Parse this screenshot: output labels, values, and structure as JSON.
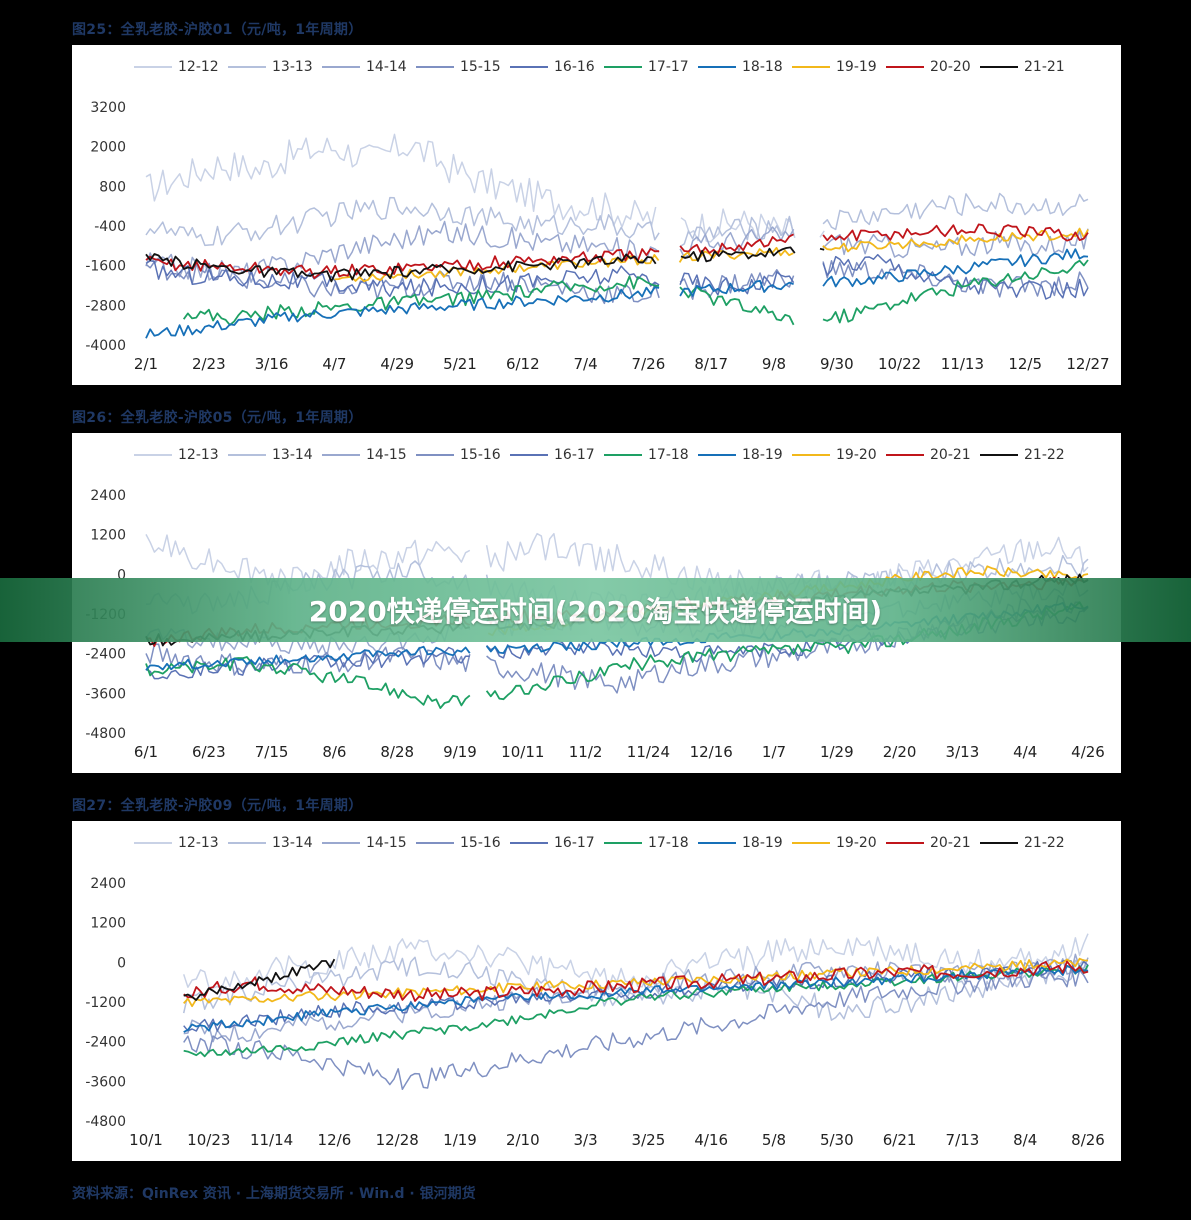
{
  "colors": {
    "series": [
      "#c9d2e6",
      "#b4c0dc",
      "#9aa8cf",
      "#7f90c2",
      "#5a72b5",
      "#1ea064",
      "#1770b8",
      "#f2b81b",
      "#c0151b",
      "#111111"
    ],
    "banner": "#5fb38a",
    "title": "#1f3864"
  },
  "banner": {
    "text": "2020快递停运时间(2020淘宝快递停运时间)"
  },
  "source": {
    "text": "资料来源：QinRex 资讯 · 上海期货交易所 · Win.d · 银河期货"
  },
  "chart_data": [
    {
      "type": "line",
      "title": "图25：全乳老胶-沪胶01（元/吨，1年周期）",
      "legend": [
        "12-12",
        "13-13",
        "14-14",
        "15-15",
        "16-16",
        "17-17",
        "18-18",
        "19-19",
        "20-20",
        "21-21"
      ],
      "y_ticks": [
        "3200",
        "2000",
        "800",
        "-400",
        "-1600",
        "-2800",
        "-4000"
      ],
      "ylim": [
        -4000,
        3200
      ],
      "x_ticks": [
        "2/1",
        "2/23",
        "3/16",
        "4/7",
        "4/29",
        "5/21",
        "6/12",
        "7/4",
        "7/26",
        "8/17",
        "9/8",
        "9/30",
        "10/22",
        "11/13",
        "12/5",
        "12/27"
      ],
      "gaps": [
        0.545,
        0.565,
        0.69,
        0.715
      ],
      "series": [
        {
          "name": "12-12",
          "values": [
            700,
            1100,
            1500,
            1300,
            1800,
            2000,
            1600,
            2100,
            1400,
            900,
            600,
            300,
            200,
            -100,
            -300,
            -400,
            -300,
            -600,
            -700
          ],
          "start": 0.0,
          "end": 0.72,
          "noise": 500
        },
        {
          "name": "13-13",
          "values": [
            -400,
            -800,
            -600,
            -300,
            0,
            200,
            100,
            -200,
            -400,
            -300,
            -600,
            -700,
            -500,
            -400,
            -200,
            0,
            200,
            300,
            200,
            300
          ],
          "start": 0.0,
          "end": 1.0,
          "noise": 350
        },
        {
          "name": "14-14",
          "values": [
            -1500,
            -1700,
            -1800,
            -1500,
            -1100,
            -800,
            -600,
            -700,
            -900,
            -1000,
            -1200,
            -1000,
            -800,
            -700,
            -900,
            -1000,
            -1100,
            -900,
            -1000,
            -800
          ],
          "start": 0.0,
          "end": 1.0,
          "noise": 350
        },
        {
          "name": "15-15",
          "values": [
            -1600,
            -1800,
            -2000,
            -2200,
            -2400,
            -2300,
            -2100,
            -2000,
            -2200,
            -2400,
            -2500,
            -2300,
            -2100,
            -1900,
            -1700,
            -1800,
            -2000,
            -2300,
            -2200,
            -2100
          ],
          "start": 0.0,
          "end": 1.0,
          "noise": 350
        },
        {
          "name": "16-16",
          "values": [
            -1700,
            -1900,
            -2000,
            -2100,
            -2200,
            -2300,
            -2200,
            -2100,
            -2000,
            -1900,
            -2000,
            -2200,
            -2100,
            -1600,
            -1400,
            -2000,
            -2200,
            -2400,
            -2300
          ],
          "start": 0.0,
          "end": 1.0,
          "noise": 300
        },
        {
          "name": "17-17",
          "values": [
            -3000,
            -3200,
            -3000,
            -2900,
            -2800,
            -2700,
            -2600,
            -2500,
            -2300,
            -2200,
            -2100,
            -2300,
            -2700,
            -3100,
            -3300,
            -3000,
            -2600,
            -2300,
            -2000,
            -1800,
            -1600
          ],
          "start": 0.04,
          "end": 1.0,
          "noise": 220
        },
        {
          "name": "18-18",
          "values": [
            -3700,
            -3500,
            -3300,
            -3100,
            -3000,
            -2900,
            -2800,
            -2700,
            -2600,
            -2500,
            -2400,
            -2300,
            -2200,
            -2100,
            -2000,
            -1800,
            -1600,
            -1400,
            -1200
          ],
          "start": 0.0,
          "end": 1.0,
          "noise": 180
        },
        {
          "name": "19-19",
          "values": [
            -2000,
            -1900,
            -1800,
            -1700,
            -1600,
            -1500,
            -1400,
            -1300,
            -1200,
            -1100,
            -1000,
            -900,
            -800,
            -700,
            -600
          ],
          "start": 0.2,
          "end": 1.0,
          "noise": 150
        },
        {
          "name": "20-20",
          "values": [
            -1500,
            -1600,
            -1700,
            -1800,
            -1700,
            -1600,
            -1500,
            -1400,
            -1300,
            -1200,
            -1000,
            -800,
            -700,
            -600,
            -500,
            -600,
            -700
          ],
          "start": 0.0,
          "end": 1.0,
          "noise": 200
        },
        {
          "name": "21-21",
          "values": [
            -1400,
            -1600,
            -1800,
            -1900,
            -1800,
            -1700,
            -1600,
            -1500,
            -1400,
            -1300,
            -1200,
            -1100
          ],
          "start": 0.0,
          "end": 0.72,
          "noise": 180
        }
      ]
    },
    {
      "type": "line",
      "title": "图26：全乳老胶-沪胶05（元/吨，1年周期）",
      "legend": [
        "12-13",
        "13-14",
        "14-15",
        "15-16",
        "16-17",
        "17-18",
        "18-19",
        "19-20",
        "20-21",
        "21-22"
      ],
      "y_ticks": [
        "2400",
        "1200",
        "0",
        "-1200",
        "-2400",
        "-3600",
        "-4800"
      ],
      "ylim": [
        -4800,
        2400
      ],
      "x_ticks": [
        "6/1",
        "6/23",
        "7/15",
        "8/6",
        "8/28",
        "9/19",
        "10/11",
        "11/2",
        "11/24",
        "12/16",
        "1/7",
        "1/29",
        "2/20",
        "3/13",
        "4/4",
        "4/26"
      ],
      "gaps": [
        0.345,
        0.36
      ],
      "series": [
        {
          "name": "12-13",
          "values": [
            900,
            600,
            200,
            -200,
            300,
            500,
            700,
            400,
            900,
            600,
            300,
            -100,
            -300,
            -200,
            -400,
            -100,
            100,
            400,
            800,
            500
          ],
          "start": 0.0,
          "end": 1.0,
          "noise": 450
        },
        {
          "name": "13-14",
          "values": [
            -600,
            -900,
            -700,
            -300,
            -100,
            200,
            -200,
            -500,
            -700,
            -900,
            -800,
            -600,
            -400,
            -300,
            -200,
            0,
            100,
            300,
            200
          ],
          "start": 0.0,
          "end": 1.0,
          "noise": 350
        },
        {
          "name": "14-15",
          "values": [
            -1800,
            -2000,
            -2100,
            -2200,
            -2100,
            -1800,
            -1600,
            -1400,
            -1500,
            -1700,
            -1600,
            -1400,
            -1200,
            -1000,
            -800,
            -600,
            -500
          ],
          "start": 0.0,
          "end": 1.0,
          "noise": 300
        },
        {
          "name": "15-16",
          "values": [
            -2400,
            -2600,
            -2800,
            -2700,
            -2600,
            -2500,
            -2700,
            -2900,
            -3100,
            -3300,
            -2900,
            -2700,
            -2500,
            -2300,
            -2000,
            -1600,
            -1300,
            -1000,
            -800
          ],
          "start": 0.0,
          "end": 1.0,
          "noise": 350
        },
        {
          "name": "16-17",
          "values": [
            -3000,
            -2900,
            -2800,
            -2700,
            -2600,
            -2500,
            -2400,
            -2300,
            -2200,
            -2300,
            -2400,
            -2300,
            -2200,
            -2000,
            -1800,
            -1600,
            -1400,
            -1200
          ],
          "start": 0.0,
          "end": 1.0,
          "noise": 250
        },
        {
          "name": "17-18",
          "values": [
            -2900,
            -2800,
            -2700,
            -2900,
            -3200,
            -3500,
            -3900,
            -3700,
            -3400,
            -3000,
            -2700,
            -2500,
            -2400,
            -2300,
            -2200,
            -2000,
            -1800,
            -1500,
            -1200,
            -1000
          ],
          "start": 0.0,
          "end": 1.0,
          "noise": 220
        },
        {
          "name": "18-19",
          "values": [
            -2800,
            -2700,
            -2600,
            -2500,
            -2400,
            -2300,
            -2300,
            -2200,
            -2100,
            -2000,
            -1900,
            -1800,
            -1700,
            -1500,
            -1300,
            -1100,
            -900
          ],
          "start": 0.0,
          "end": 1.0,
          "noise": 150
        },
        {
          "name": "19-20",
          "values": [
            -1800,
            -1600,
            -1400,
            -1200,
            -1000,
            -800,
            -600,
            -400,
            -200,
            0,
            100,
            0,
            -100
          ],
          "start": 0.35,
          "end": 1.0,
          "noise": 150
        },
        {
          "name": "20-21",
          "values": [
            -2000,
            -1800,
            -1600,
            -1500,
            -1400,
            -1300,
            -1200,
            -1000,
            -800,
            -700,
            -500,
            -400,
            -300,
            -200
          ],
          "start": 0.0,
          "end": 1.0,
          "noise": 200
        },
        {
          "name": "21-22",
          "values": [
            -2000,
            -1900,
            -1800,
            -1700,
            -1600,
            -1500,
            -1300,
            -1100,
            -900,
            -700,
            -500,
            -300,
            -100
          ],
          "start": 0.0,
          "end": 1.0,
          "noise": 180
        }
      ]
    },
    {
      "type": "line",
      "title": "图27：全乳老胶-沪胶09（元/吨，1年周期）",
      "legend": [
        "12-13",
        "13-14",
        "14-15",
        "15-16",
        "16-17",
        "17-18",
        "18-19",
        "19-20",
        "20-21",
        "21-22"
      ],
      "y_ticks": [
        "2400",
        "1200",
        "0",
        "-1200",
        "-2400",
        "-3600",
        "-4800"
      ],
      "ylim": [
        -4800,
        2400
      ],
      "x_ticks": [
        "10/1",
        "10/23",
        "11/14",
        "12/6",
        "12/28",
        "1/19",
        "2/10",
        "3/3",
        "3/25",
        "4/16",
        "5/8",
        "5/30",
        "6/21",
        "7/13",
        "8/4",
        "8/26"
      ],
      "gaps": [],
      "series": [
        {
          "name": "12-13",
          "values": [
            -600,
            -400,
            -200,
            0,
            200,
            400,
            300,
            0,
            -300,
            -500,
            -300,
            0,
            200,
            400,
            500,
            300,
            100,
            0,
            200,
            500
          ],
          "start": 0.04,
          "end": 1.0,
          "noise": 400
        },
        {
          "name": "13-14",
          "values": [
            -1200,
            -1000,
            -700,
            -500,
            -300,
            -100,
            -400,
            -700,
            -900,
            -1100,
            -900,
            -700,
            -1000,
            -1500,
            -1300,
            -1000,
            -700,
            -400,
            -200
          ],
          "start": 0.04,
          "end": 1.0,
          "noise": 350
        },
        {
          "name": "14-15",
          "values": [
            -2000,
            -2200,
            -1900,
            -1700,
            -1500,
            -1300,
            -1100,
            -900,
            -700,
            -500,
            -400,
            -300,
            -200,
            -300,
            -400,
            -200,
            0
          ],
          "start": 0.04,
          "end": 1.0,
          "noise": 300
        },
        {
          "name": "15-16",
          "values": [
            -2400,
            -2600,
            -2800,
            -3200,
            -3600,
            -3300,
            -2900,
            -2600,
            -2300,
            -2000,
            -1700,
            -1300,
            -1000,
            -800,
            -600,
            -500,
            -400
          ],
          "start": 0.04,
          "end": 1.0,
          "noise": 300
        },
        {
          "name": "16-17",
          "values": [
            -2000,
            -1800,
            -1600,
            -1400,
            -1300,
            -1200,
            -1100,
            -1000,
            -900,
            -800,
            -700,
            -600,
            -500,
            -400,
            -300,
            -200,
            -100
          ],
          "start": 0.04,
          "end": 1.0,
          "noise": 220
        },
        {
          "name": "17-18",
          "values": [
            -2800,
            -2700,
            -2600,
            -2400,
            -2200,
            -2000,
            -1800,
            -1500,
            -1200,
            -1000,
            -900,
            -800,
            -700,
            -600,
            -500,
            -400,
            -300,
            -200
          ],
          "start": 0.04,
          "end": 1.0,
          "noise": 150
        },
        {
          "name": "18-19",
          "values": [
            -2000,
            -1800,
            -1600,
            -1400,
            -1200,
            -1100,
            -1000,
            -900,
            -800,
            -700,
            -600,
            -500,
            -400,
            -300,
            -200
          ],
          "start": 0.04,
          "end": 1.0,
          "noise": 150
        },
        {
          "name": "19-20",
          "values": [
            -1200,
            -1100,
            -1000,
            -900,
            -800,
            -700,
            -600,
            -500,
            -400,
            -300,
            -200,
            -100,
            0
          ],
          "start": 0.04,
          "end": 1.0,
          "noise": 150
        },
        {
          "name": "20-21",
          "values": [
            -1000,
            -600,
            -800,
            -900,
            -1000,
            -900,
            -800,
            -700,
            -600,
            -500,
            -400,
            -300,
            -300,
            -200,
            -100
          ],
          "start": 0.04,
          "end": 1.0,
          "noise": 220
        },
        {
          "name": "21-22",
          "values": [
            -1100,
            -1000,
            -900,
            -800,
            -700,
            -600,
            -500,
            -400,
            -300,
            -200,
            -100,
            0
          ],
          "start": 0.04,
          "end": 0.2,
          "noise": 150
        }
      ]
    }
  ]
}
